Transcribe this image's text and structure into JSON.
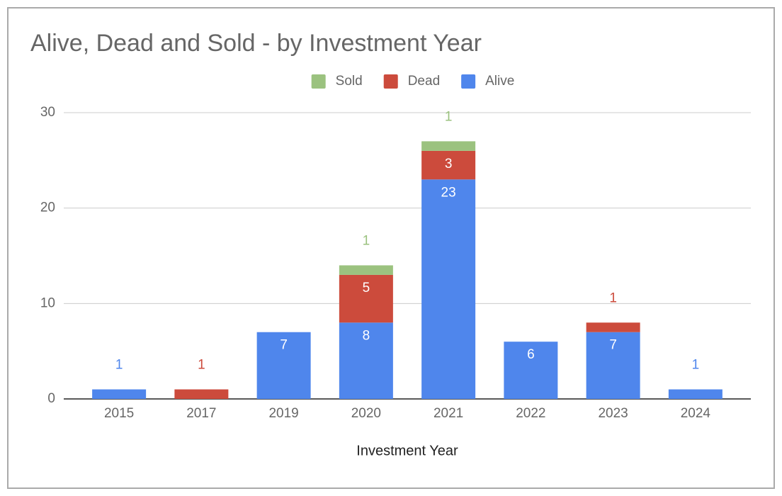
{
  "chart_data": {
    "type": "stacked-bar",
    "title": "Alive, Dead and Sold - by Investment Year",
    "x_label": "Investment Year",
    "categories": [
      "2015",
      "2017",
      "2019",
      "2020",
      "2021",
      "2022",
      "2023",
      "2024"
    ],
    "series": [
      {
        "name": "Alive",
        "color": "#4f86ec",
        "values": [
          1,
          null,
          7,
          8,
          23,
          6,
          7,
          1
        ]
      },
      {
        "name": "Dead",
        "color": "#cc4b3c",
        "values": [
          null,
          1,
          null,
          5,
          3,
          null,
          1,
          null
        ]
      },
      {
        "name": "Sold",
        "color": "#9bc27f",
        "values": [
          null,
          null,
          null,
          1,
          1,
          null,
          null,
          null
        ]
      }
    ],
    "ylim": [
      0,
      30
    ],
    "yticks": [
      0,
      10,
      20,
      30
    ],
    "grid": true,
    "legend": "top"
  }
}
